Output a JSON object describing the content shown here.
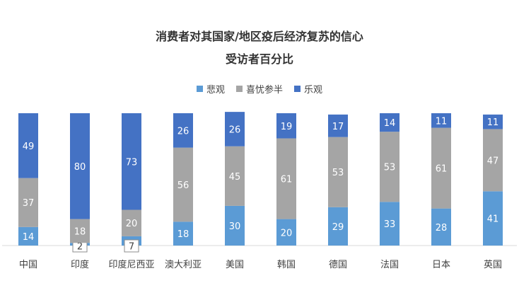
{
  "chart_data": {
    "type": "bar",
    "stacked": true,
    "title": "消费者对其国家/地区疫后经济复苏的信心",
    "subtitle": "受访者百分比",
    "categories": [
      "中国",
      "印度",
      "印度尼西亚",
      "澳大利亚",
      "美国",
      "韩国",
      "德国",
      "法国",
      "日本",
      "英国"
    ],
    "series": [
      {
        "name": "悲观",
        "color": "#5B9BD5",
        "values": [
          14,
          2,
          7,
          18,
          30,
          20,
          29,
          33,
          28,
          41
        ]
      },
      {
        "name": "喜忧参半",
        "color": "#A5A5A5",
        "values": [
          37,
          18,
          20,
          56,
          45,
          61,
          53,
          53,
          61,
          47
        ]
      },
      {
        "name": "乐观",
        "color": "#4472C4",
        "values": [
          49,
          80,
          73,
          26,
          26,
          19,
          17,
          14,
          11,
          11
        ]
      }
    ],
    "legend_position": "top",
    "grid": false,
    "ylim": [
      0,
      100
    ]
  }
}
